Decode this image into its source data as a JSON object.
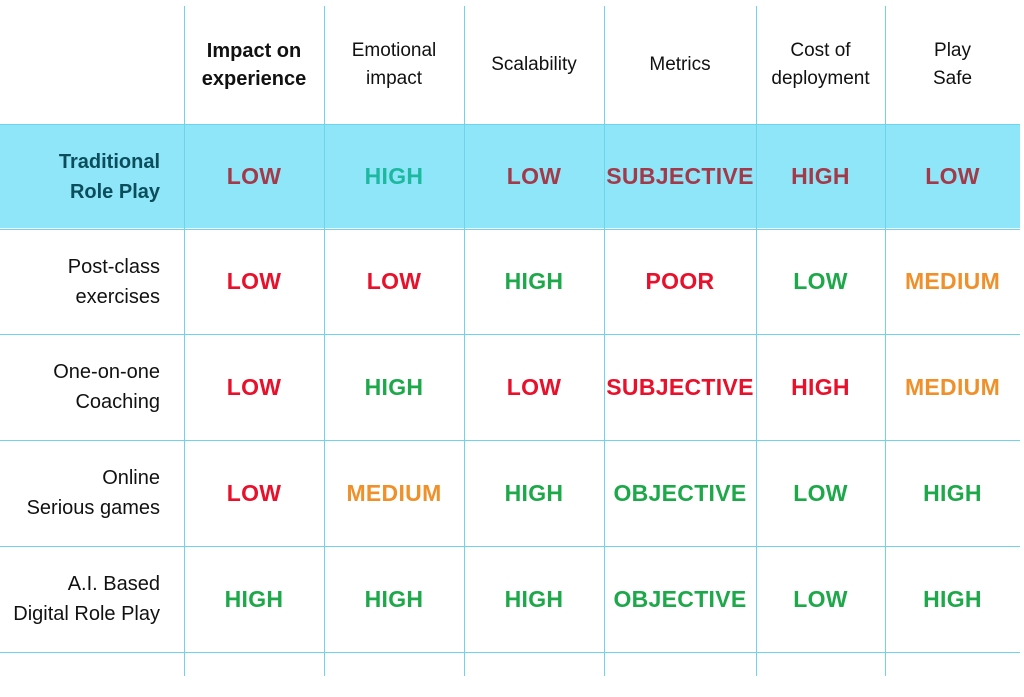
{
  "table": {
    "columns": [
      "Impact on\nexperience",
      "Emotional\nimpact",
      "Scalability",
      "Metrics",
      "Cost of\ndeployment",
      "Play\nSafe"
    ],
    "rows": [
      {
        "label": "Traditional\nRole Play",
        "highlighted": true,
        "values": [
          "LOW",
          "HIGH",
          "LOW",
          "SUBJECTIVE",
          "HIGH",
          "LOW"
        ],
        "colors": [
          "#a33a4a",
          "#1db8a0",
          "#a33a4a",
          "#a33a4a",
          "#a33a4a",
          "#a33a4a"
        ]
      },
      {
        "label": "Post-class\nexercises",
        "highlighted": false,
        "values": [
          "LOW",
          "LOW",
          "HIGH",
          "POOR",
          "LOW",
          "MEDIUM"
        ],
        "colors": [
          "#e8102a",
          "#e8102a",
          "#1da84a",
          "#e8102a",
          "#1da84a",
          "#f0902a"
        ]
      },
      {
        "label": "One-on-one\nCoaching",
        "highlighted": false,
        "values": [
          "LOW",
          "HIGH",
          "LOW",
          "SUBJECTIVE",
          "HIGH",
          "MEDIUM"
        ],
        "colors": [
          "#e8102a",
          "#1da84a",
          "#e8102a",
          "#e8102a",
          "#e8102a",
          "#f0902a"
        ]
      },
      {
        "label": "Online\nSerious games",
        "highlighted": false,
        "values": [
          "LOW",
          "MEDIUM",
          "HIGH",
          "OBJECTIVE",
          "LOW",
          "HIGH"
        ],
        "colors": [
          "#e8102a",
          "#f0902a",
          "#1da84a",
          "#1da84a",
          "#1da84a",
          "#1da84a"
        ]
      },
      {
        "label": "A.I. Based\nDigital Role Play",
        "highlighted": false,
        "values": [
          "HIGH",
          "HIGH",
          "HIGH",
          "OBJECTIVE",
          "LOW",
          "HIGH"
        ],
        "colors": [
          "#1da84a",
          "#1da84a",
          "#1da84a",
          "#1da84a",
          "#1da84a",
          "#1da84a"
        ]
      }
    ]
  }
}
